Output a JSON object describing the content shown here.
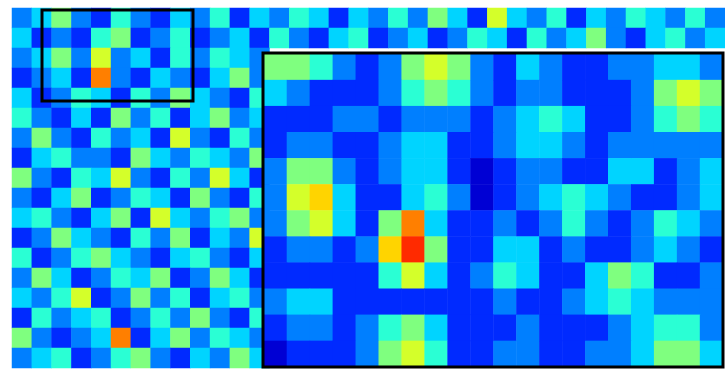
{
  "chart_data": {
    "type": "heatmap",
    "tick_labels": false,
    "color_range": [
      0,
      12
    ],
    "cells": [
      [
        3,
        4,
        6,
        3,
        2,
        5,
        3,
        2,
        4,
        3,
        5,
        2,
        4,
        3,
        5,
        4,
        2,
        4,
        3,
        5,
        3,
        6,
        4,
        2,
        7,
        4,
        3,
        5,
        2,
        4,
        3,
        5,
        4,
        3,
        5,
        3
      ],
      [
        4,
        2,
        3,
        2,
        5,
        6,
        2,
        3,
        5,
        2,
        3,
        4,
        2,
        5,
        3,
        2,
        4,
        5,
        2,
        3,
        4,
        2,
        3,
        5,
        4,
        2,
        5,
        3,
        4,
        6,
        3,
        2,
        4,
        5,
        3,
        4
      ],
      [
        3,
        4,
        6,
        3,
        7,
        3,
        4,
        2,
        5,
        3,
        5,
        4,
        3
      ],
      [
        2,
        3,
        4,
        2,
        9,
        3,
        2,
        4,
        3,
        2,
        4,
        6,
        3
      ],
      [
        4,
        2,
        3,
        5,
        4,
        2,
        5,
        3,
        6,
        4,
        3,
        2,
        5
      ],
      [
        5,
        3,
        2,
        4,
        2,
        6,
        3,
        5,
        2,
        4,
        6,
        3,
        4
      ],
      [
        3,
        6,
        3,
        2,
        5,
        3,
        4,
        2,
        7,
        3,
        2,
        5,
        3
      ],
      [
        2,
        4,
        5,
        3,
        3,
        2,
        6,
        4,
        3,
        5,
        4,
        3,
        6
      ],
      [
        6,
        3,
        2,
        5,
        4,
        7,
        3,
        2,
        5,
        3,
        7,
        4,
        2
      ],
      [
        3,
        2,
        4,
        6,
        2,
        3,
        5,
        4,
        2,
        6,
        3,
        2,
        5
      ],
      [
        4,
        5,
        3,
        2,
        4,
        6,
        2,
        7,
        4,
        3,
        5,
        6,
        3
      ],
      [
        2,
        3,
        6,
        4,
        3,
        2,
        5,
        3,
        6,
        2,
        4,
        3,
        7
      ],
      [
        5,
        2,
        3,
        5,
        6,
        4,
        3,
        2,
        4,
        5,
        3,
        2,
        4
      ],
      [
        3,
        6,
        4,
        2,
        3,
        5,
        4,
        6,
        2,
        3,
        6,
        4,
        2
      ],
      [
        4,
        3,
        5,
        7,
        2,
        3,
        6,
        3,
        5,
        2,
        4,
        5,
        3
      ],
      [
        2,
        5,
        3,
        4,
        5,
        2,
        3,
        5,
        3,
        6,
        3,
        2,
        5
      ],
      [
        6,
        3,
        2,
        3,
        4,
        9,
        2,
        4,
        6,
        3,
        5,
        4,
        3
      ],
      [
        3,
        4,
        5,
        2,
        3,
        5,
        6,
        3,
        2,
        4,
        3,
        6,
        4
      ]
    ],
    "inset_cells": [
      [
        6,
        6,
        5,
        3,
        2,
        3,
        6,
        7,
        6,
        3,
        2,
        4,
        3,
        2,
        2,
        3,
        3,
        4,
        4,
        3
      ],
      [
        4,
        3,
        2,
        2,
        2,
        3,
        5,
        6,
        5,
        3,
        2,
        3,
        3,
        2,
        2,
        2,
        3,
        6,
        7,
        6
      ],
      [
        2,
        2,
        2,
        3,
        3,
        2,
        3,
        3,
        3,
        2,
        3,
        4,
        5,
        4,
        2,
        2,
        3,
        5,
        6,
        5
      ],
      [
        2,
        3,
        3,
        2,
        2,
        3,
        4,
        4,
        2,
        2,
        3,
        4,
        4,
        3,
        2,
        3,
        3,
        3,
        3,
        3
      ],
      [
        3,
        6,
        6,
        3,
        2,
        3,
        4,
        4,
        2,
        1,
        2,
        3,
        3,
        2,
        2,
        4,
        4,
        2,
        3,
        4
      ],
      [
        3,
        7,
        8,
        4,
        2,
        2,
        4,
        5,
        3,
        1,
        2,
        3,
        4,
        5,
        4,
        3,
        2,
        2,
        3,
        4
      ],
      [
        3,
        6,
        7,
        4,
        2,
        6,
        9,
        4,
        2,
        2,
        3,
        2,
        3,
        5,
        3,
        2,
        3,
        5,
        4,
        3
      ],
      [
        2,
        3,
        3,
        2,
        3,
        8,
        10,
        6,
        2,
        2,
        4,
        4,
        2,
        3,
        2,
        2,
        3,
        4,
        3,
        2
      ],
      [
        2,
        2,
        2,
        2,
        2,
        5,
        7,
        4,
        2,
        3,
        5,
        4,
        2,
        2,
        4,
        6,
        5,
        2,
        2,
        3
      ],
      [
        3,
        4,
        4,
        2,
        2,
        2,
        2,
        2,
        2,
        2,
        3,
        2,
        2,
        3,
        4,
        5,
        4,
        3,
        3,
        3
      ],
      [
        2,
        3,
        3,
        2,
        3,
        5,
        6,
        4,
        2,
        2,
        2,
        3,
        2,
        2,
        2,
        3,
        4,
        5,
        5,
        3
      ],
      [
        1,
        2,
        2,
        2,
        3,
        6,
        7,
        5,
        2,
        2,
        3,
        3,
        2,
        2,
        3,
        3,
        4,
        6,
        6,
        4
      ]
    ]
  }
}
